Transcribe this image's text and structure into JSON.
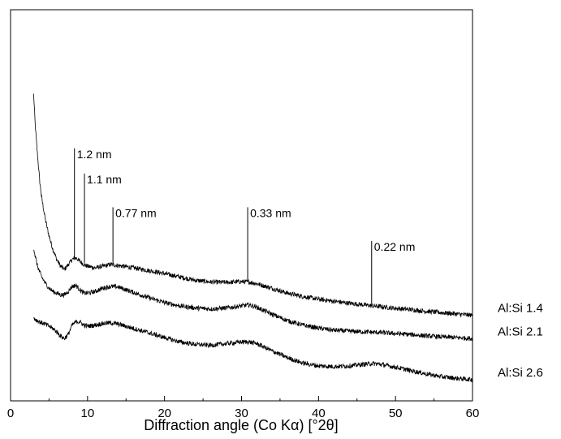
{
  "chart_data": {
    "type": "line",
    "title": "",
    "xlabel": "Diffraction angle (Co Kα)  [°2θ]",
    "ylabel": "",
    "xlim": [
      0,
      60
    ],
    "ylim": [
      0,
      100
    ],
    "grid": false,
    "y_ticks_visible": false,
    "x_ticks": [
      "0",
      "10",
      "20",
      "30",
      "40",
      "50",
      "60"
    ],
    "legend": "series labels at right end of each curve",
    "line_color": "#000000",
    "series": [
      {
        "name": "Al:Si 1.4",
        "x": [
          3,
          3.2,
          3.5,
          3.8,
          4,
          4.5,
          5,
          5.5,
          6,
          6.5,
          7,
          7.5,
          8,
          8.5,
          9,
          9.5,
          10,
          11,
          12,
          13,
          14,
          16,
          18,
          20,
          22,
          24,
          26,
          28,
          30,
          31,
          32,
          34,
          36,
          38,
          40,
          42,
          44,
          46,
          48,
          50,
          52,
          54,
          56,
          58,
          60
        ],
        "values": [
          84,
          75,
          66,
          58,
          54,
          47,
          42,
          38,
          35,
          33,
          32,
          33.5,
          35,
          35.5,
          34.5,
          33.5,
          33,
          32.5,
          33,
          33.5,
          33.2,
          32.5,
          31.7,
          30.8,
          29.8,
          28.8,
          28.3,
          28.2,
          28.4,
          28.3,
          27.8,
          26.4,
          25,
          24,
          23.2,
          22.6,
          22,
          21.5,
          21,
          20.5,
          20.1,
          19.6,
          19.2,
          18.8,
          18.4
        ]
      },
      {
        "name": "Al:Si 2.1",
        "x": [
          3,
          3.2,
          3.5,
          4,
          4.5,
          5,
          5.5,
          6,
          6.5,
          7,
          7.5,
          8,
          8.5,
          9,
          9.5,
          10,
          11,
          12,
          13,
          14,
          16,
          18,
          20,
          22,
          24,
          26,
          28,
          30,
          31,
          32,
          34,
          36,
          38,
          40,
          42,
          44,
          46,
          48,
          50,
          52,
          54,
          56,
          58,
          60
        ],
        "values": [
          38.5,
          36,
          33,
          30,
          28,
          26.5,
          25.5,
          25,
          24.5,
          24.5,
          25.5,
          27,
          27.3,
          26,
          25,
          25,
          25.5,
          26.5,
          27,
          26.8,
          25.2,
          23.6,
          22.2,
          21.2,
          20.6,
          20.3,
          20.6,
          21.2,
          21.5,
          20.8,
          18.7,
          16.8,
          15.5,
          14.6,
          14,
          13.7,
          13.5,
          13.3,
          13,
          12.7,
          12.3,
          12,
          11.8,
          11.5
        ]
      },
      {
        "name": "Al:Si 2.6",
        "x": [
          3,
          3.5,
          4,
          4.5,
          5,
          5.5,
          6,
          6.5,
          7,
          7.5,
          8,
          8.5,
          9,
          9.5,
          10,
          11,
          12,
          13,
          14,
          16,
          18,
          20,
          22,
          24,
          26,
          28,
          30,
          31,
          32,
          34,
          36,
          38,
          40,
          42,
          44,
          46,
          47,
          48,
          50,
          52,
          54,
          56,
          58,
          60
        ],
        "values": [
          17.5,
          16.8,
          16.2,
          15.8,
          15.2,
          14.5,
          13.5,
          12.3,
          11.5,
          12.8,
          15.5,
          16.5,
          16.5,
          15.5,
          15.2,
          15.5,
          16,
          16.2,
          15.8,
          14.5,
          13.2,
          11.8,
          10.5,
          9.8,
          9.5,
          10,
          10.5,
          10.5,
          10,
          7.8,
          5.8,
          4.2,
          3.4,
          3.2,
          3.4,
          3.9,
          4.1,
          3.9,
          3,
          2,
          1,
          0.2,
          -0.3,
          -0.7
        ]
      }
    ],
    "annotations": [
      {
        "label": "1.2 nm",
        "x": 8.3,
        "y_bottom": 35.5,
        "y_top": 68
      },
      {
        "label": "1.1 nm",
        "x": 9.6,
        "y_bottom": 34,
        "y_top": 60.5
      },
      {
        "label": "0.77 nm",
        "x": 13.3,
        "y_bottom": 33.5,
        "y_top": 50.5
      },
      {
        "label": "0.33 nm",
        "x": 30.8,
        "y_bottom": 28.3,
        "y_top": 50.5
      },
      {
        "label": "0.22 nm",
        "x": 46.9,
        "y_bottom": 21.7,
        "y_top": 40.5
      }
    ]
  }
}
